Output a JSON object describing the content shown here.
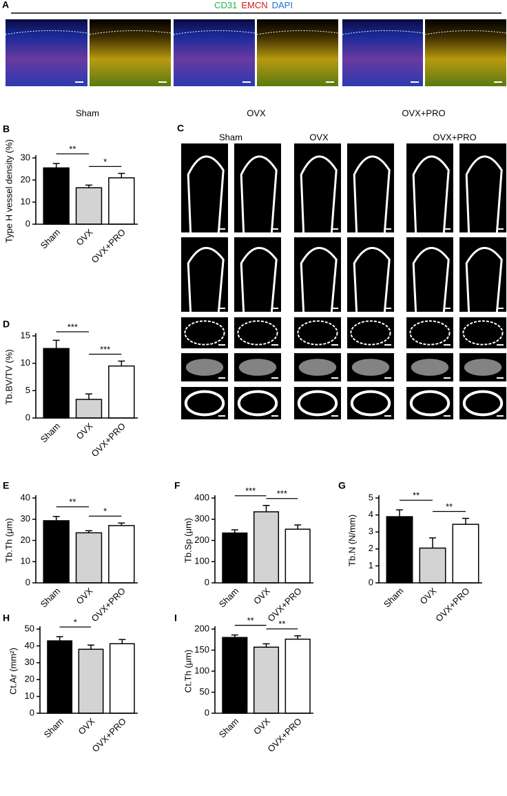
{
  "panel_a": {
    "label": "A",
    "stains": [
      {
        "name": "CD31",
        "color": "#22b14c"
      },
      {
        "name": "EMCN",
        "color": "#d7191c"
      },
      {
        "name": "DAPI",
        "color": "#1f6fd1"
      }
    ],
    "groups": [
      "Sham",
      "OVX",
      "OVX+PRO"
    ]
  },
  "panel_c": {
    "label": "C",
    "groups": [
      "Sham",
      "OVX",
      "OVX+PRO"
    ]
  },
  "chart_data": [
    {
      "type": "bar",
      "label": "B",
      "ylabel": "Type H vessel density (%)",
      "categories": [
        "Sham",
        "OVX",
        "OVX+PRO"
      ],
      "values": [
        25.5,
        16.5,
        21
      ],
      "errors": [
        2,
        1.2,
        2
      ],
      "colors": [
        "#000000",
        "#d3d3d3",
        "#ffffff"
      ],
      "edgecolor": "#000000",
      "ylim": [
        0,
        30
      ],
      "yticks": [
        0,
        10,
        20,
        30
      ],
      "significance": [
        {
          "from": 0,
          "to": 1,
          "label": "**"
        },
        {
          "from": 1,
          "to": 2,
          "label": "*"
        }
      ]
    },
    {
      "type": "bar",
      "label": "D",
      "ylabel": "Tb.BV/TV (%)",
      "categories": [
        "Sham",
        "OVX",
        "OVX+PRO"
      ],
      "values": [
        12.7,
        3.4,
        9.5
      ],
      "errors": [
        1.5,
        1,
        0.9
      ],
      "colors": [
        "#000000",
        "#d3d3d3",
        "#ffffff"
      ],
      "edgecolor": "#000000",
      "ylim": [
        0,
        15
      ],
      "yticks": [
        0,
        5,
        10,
        15
      ],
      "significance": [
        {
          "from": 0,
          "to": 1,
          "label": "***"
        },
        {
          "from": 1,
          "to": 2,
          "label": "***"
        }
      ]
    },
    {
      "type": "bar",
      "label": "E",
      "ylabel": "Tb.Th (μm)",
      "categories": [
        "Sham",
        "OVX",
        "OVX+PRO"
      ],
      "values": [
        29.3,
        23.6,
        27
      ],
      "errors": [
        2,
        1,
        1.2
      ],
      "colors": [
        "#000000",
        "#d3d3d3",
        "#ffffff"
      ],
      "edgecolor": "#000000",
      "ylim": [
        0,
        40
      ],
      "yticks": [
        0,
        10,
        20,
        30,
        40
      ],
      "significance": [
        {
          "from": 0,
          "to": 1,
          "label": "**"
        },
        {
          "from": 1,
          "to": 2,
          "label": "*"
        }
      ]
    },
    {
      "type": "bar",
      "label": "F",
      "ylabel": "Tb.Sp (μm)",
      "categories": [
        "Sham",
        "OVX",
        "OVX+PRO"
      ],
      "values": [
        235,
        335,
        253
      ],
      "errors": [
        15,
        30,
        20
      ],
      "colors": [
        "#000000",
        "#d3d3d3",
        "#ffffff"
      ],
      "edgecolor": "#000000",
      "ylim": [
        0,
        400
      ],
      "yticks": [
        0,
        100,
        200,
        300,
        400
      ],
      "significance": [
        {
          "from": 0,
          "to": 1,
          "label": "***"
        },
        {
          "from": 1,
          "to": 2,
          "label": "***"
        }
      ]
    },
    {
      "type": "bar",
      "label": "G",
      "ylabel": "Tb.N (N/mm)",
      "categories": [
        "Sham",
        "OVX",
        "OVX+PRO"
      ],
      "values": [
        3.9,
        2.05,
        3.45
      ],
      "errors": [
        0.4,
        0.6,
        0.35
      ],
      "colors": [
        "#000000",
        "#d3d3d3",
        "#ffffff"
      ],
      "edgecolor": "#000000",
      "ylim": [
        0,
        5
      ],
      "yticks": [
        0,
        1,
        2,
        3,
        4,
        5
      ],
      "significance": [
        {
          "from": 0,
          "to": 1,
          "label": "**"
        },
        {
          "from": 1,
          "to": 2,
          "label": "**"
        }
      ]
    },
    {
      "type": "bar",
      "label": "H",
      "ylabel": "Ct.Ar (mm²)",
      "categories": [
        "Sham",
        "OVX",
        "OVX+PRO"
      ],
      "values": [
        43,
        38,
        41.3
      ],
      "errors": [
        2.5,
        2.5,
        2.5
      ],
      "colors": [
        "#000000",
        "#d3d3d3",
        "#ffffff"
      ],
      "edgecolor": "#000000",
      "ylim": [
        0,
        50
      ],
      "yticks": [
        0,
        10,
        20,
        30,
        40,
        50
      ],
      "significance": [
        {
          "from": 0,
          "to": 1,
          "label": "*"
        }
      ]
    },
    {
      "type": "bar",
      "label": "I",
      "ylabel": "Ct.Th (μm)",
      "categories": [
        "Sham",
        "OVX",
        "OVX+PRO"
      ],
      "values": [
        180,
        157,
        176
      ],
      "errors": [
        6,
        8,
        8
      ],
      "colors": [
        "#000000",
        "#d3d3d3",
        "#ffffff"
      ],
      "edgecolor": "#000000",
      "ylim": [
        0,
        200
      ],
      "yticks": [
        0,
        50,
        100,
        150,
        200
      ],
      "significance": [
        {
          "from": 0,
          "to": 1,
          "label": "**"
        },
        {
          "from": 1,
          "to": 2,
          "label": "**"
        }
      ]
    }
  ]
}
